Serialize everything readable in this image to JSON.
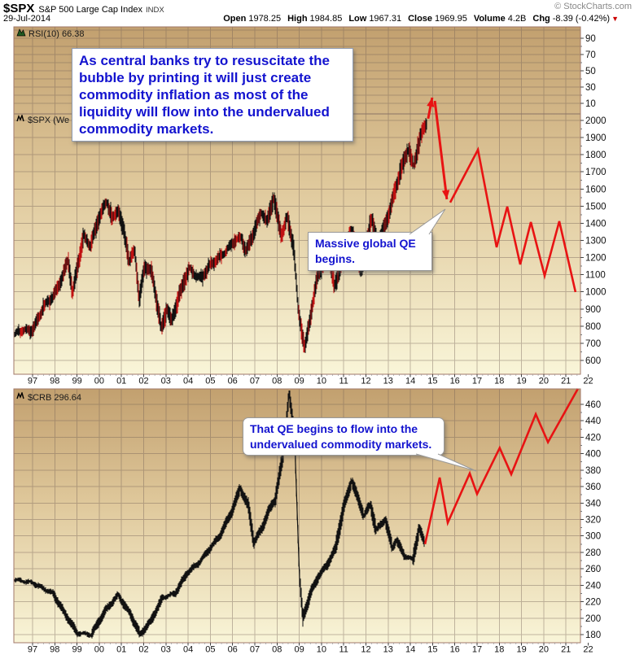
{
  "header": {
    "symbol": "$SPX",
    "name": "S&P 500 Large Cap Index",
    "exchange": "INDX",
    "copyright": "© StockCharts.com",
    "date": "29-Jul-2014",
    "quote": [
      {
        "label": "Open",
        "value": "1978.25"
      },
      {
        "label": "High",
        "value": "1984.85"
      },
      {
        "label": "Low",
        "value": "1967.31"
      },
      {
        "label": "Close",
        "value": "1969.95"
      },
      {
        "label": "Volume",
        "value": "4.2B"
      },
      {
        "label": "Chg",
        "value": "-8.39 (-0.42%)"
      }
    ],
    "chg_direction": "down",
    "chg_triangle": "▼"
  },
  "panels": {
    "rsi_label": "RSI(10) 66.38",
    "spx_label": "$SPX (We",
    "crb_label": "$CRB 296.64"
  },
  "annotations": {
    "main_note": "As central banks try to resuscitate the bubble by printing it will just create commodity inflation as most of the liquidity will flow into the undervalued commodity markets.",
    "qe_note": "Massive global QE begins.",
    "crb_note": "That QE begins to flow into the undervalued commodity markets."
  },
  "colors": {
    "annotation_blue": "#1313cf",
    "projection_red": "#e81313",
    "bar_black": "#111111",
    "bar_red": "#c11111",
    "panel_gradient_top": "#c2a06f",
    "panel_gradient_bottom": "#f9f5d8",
    "panel_border": "#a2786a",
    "chg_red": "#cc0000"
  },
  "chart_data": [
    {
      "type": "line",
      "title": "RSI(10)",
      "value": 66.38,
      "yticks": [
        90,
        70,
        50,
        30,
        10
      ],
      "ylim": [
        0,
        105
      ],
      "note": "indicator line hidden behind annotation box"
    },
    {
      "type": "ohlc",
      "title": "$SPX weekly price",
      "x_years": [
        "97",
        "98",
        "99",
        "00",
        "01",
        "02",
        "03",
        "04",
        "05",
        "06",
        "07",
        "08",
        "09",
        "10",
        "11",
        "12",
        "13",
        "14",
        "15",
        "16",
        "17",
        "18",
        "19",
        "20",
        "21",
        "22"
      ],
      "yticks": [
        2000,
        1900,
        1800,
        1700,
        1600,
        1500,
        1400,
        1300,
        1200,
        1100,
        1000,
        900,
        800,
        700,
        600
      ],
      "ylim": [
        520,
        2050
      ],
      "series": [
        {
          "name": "SPX close (year-index from 97, price)",
          "points": [
            [
              -0.84,
              745
            ],
            [
              0,
              790
            ],
            [
              0.5,
              905
            ],
            [
              0.9,
              963
            ],
            [
              1.3,
              1085
            ],
            [
              1.6,
              1186
            ],
            [
              1.8,
              980
            ],
            [
              2.3,
              1335
            ],
            [
              2.6,
              1280
            ],
            [
              3,
              1425
            ],
            [
              3.35,
              1525
            ],
            [
              3.6,
              1430
            ],
            [
              3.85,
              1490
            ],
            [
              4.1,
              1350
            ],
            [
              4.35,
              1170
            ],
            [
              4.6,
              1240
            ],
            [
              4.8,
              970
            ],
            [
              5.05,
              1160
            ],
            [
              5.35,
              1110
            ],
            [
              5.8,
              780
            ],
            [
              6.05,
              920
            ],
            [
              6.25,
              835
            ],
            [
              7.05,
              1140
            ],
            [
              7.6,
              1080
            ],
            [
              8.5,
              1225
            ],
            [
              9.4,
              1315
            ],
            [
              9.6,
              1245
            ],
            [
              10.3,
              1455
            ],
            [
              10.55,
              1400
            ],
            [
              10.85,
              1562
            ],
            [
              11.2,
              1330
            ],
            [
              11.45,
              1425
            ],
            [
              11.75,
              1255
            ],
            [
              11.95,
              905
            ],
            [
              12.25,
              680
            ],
            [
              12.85,
              1095
            ],
            [
              13.35,
              1215
            ],
            [
              13.6,
              1030
            ],
            [
              14.35,
              1365
            ],
            [
              14.8,
              1125
            ],
            [
              15.25,
              1420
            ],
            [
              15.5,
              1285
            ],
            [
              16.05,
              1465
            ],
            [
              16.55,
              1690
            ],
            [
              16.9,
              1845
            ],
            [
              17.15,
              1740
            ],
            [
              17.45,
              1900
            ],
            [
              17.77,
              1985
            ]
          ]
        }
      ],
      "projection": [
        {
          "points": [
            [
              17.8,
              2010
            ],
            [
              17.98,
              2133
            ]
          ],
          "arrow": "end"
        },
        {
          "points": [
            [
              18.1,
              2114
            ],
            [
              18.64,
              1540
            ]
          ],
          "arrow": "end"
        },
        {
          "points": [
            [
              18.79,
              1521
            ],
            [
              20.04,
              1829
            ],
            [
              20.88,
              1260
            ],
            [
              21.36,
              1497
            ],
            [
              21.94,
              1160
            ],
            [
              22.42,
              1407
            ],
            [
              23.04,
              1094
            ],
            [
              23.7,
              1412
            ],
            [
              24.43,
              999
            ]
          ],
          "arrow": "none"
        }
      ]
    },
    {
      "type": "line",
      "title": "$CRB",
      "value": 296.64,
      "x_years": [
        "97",
        "98",
        "99",
        "00",
        "01",
        "02",
        "03",
        "04",
        "05",
        "06",
        "07",
        "08",
        "09",
        "10",
        "11",
        "12",
        "13",
        "14",
        "15",
        "16",
        "17",
        "18",
        "19",
        "20",
        "21",
        "22"
      ],
      "yticks": [
        460,
        440,
        420,
        400,
        380,
        360,
        340,
        320,
        300,
        280,
        260,
        240,
        220,
        200,
        180
      ],
      "ylim": [
        172,
        482
      ],
      "series": [
        {
          "name": "CRB index (year-index from 97, value)",
          "points": [
            [
              -0.84,
              247
            ],
            [
              0,
              243
            ],
            [
              0.92,
              230
            ],
            [
              1.47,
              205
            ],
            [
              2.01,
              182
            ],
            [
              2.64,
              180
            ],
            [
              3.3,
              210
            ],
            [
              3.85,
              228
            ],
            [
              4.4,
              205
            ],
            [
              4.84,
              180
            ],
            [
              5.31,
              196
            ],
            [
              5.86,
              225
            ],
            [
              6.41,
              230
            ],
            [
              6.96,
              255
            ],
            [
              7.51,
              268
            ],
            [
              7.99,
              285
            ],
            [
              8.42,
              300
            ],
            [
              8.97,
              330
            ],
            [
              9.34,
              358
            ],
            [
              9.71,
              336
            ],
            [
              9.96,
              292
            ],
            [
              10.33,
              310
            ],
            [
              10.62,
              330
            ],
            [
              10.92,
              345
            ],
            [
              11.28,
              400
            ],
            [
              11.54,
              473
            ],
            [
              11.79,
              420
            ],
            [
              12.01,
              250
            ],
            [
              12.16,
              200
            ],
            [
              12.53,
              232
            ],
            [
              12.89,
              252
            ],
            [
              13.26,
              265
            ],
            [
              13.63,
              285
            ],
            [
              14,
              335
            ],
            [
              14.36,
              367
            ],
            [
              14.91,
              325
            ],
            [
              15.2,
              338
            ],
            [
              15.46,
              307
            ],
            [
              15.86,
              320
            ],
            [
              16.19,
              286
            ],
            [
              16.37,
              295
            ],
            [
              16.74,
              276
            ],
            [
              17.11,
              271
            ],
            [
              17.4,
              309
            ],
            [
              17.66,
              290
            ]
          ]
        }
      ],
      "projection": [
        {
          "points": [
            [
              17.66,
              290
            ],
            [
              18.32,
              371
            ],
            [
              18.68,
              316
            ],
            [
              19.67,
              376
            ],
            [
              20,
              351
            ],
            [
              21.02,
              407
            ],
            [
              21.54,
              375
            ],
            [
              22.64,
              448
            ],
            [
              23.19,
              414
            ],
            [
              24.54,
              479
            ]
          ],
          "arrow": "none"
        }
      ]
    }
  ]
}
